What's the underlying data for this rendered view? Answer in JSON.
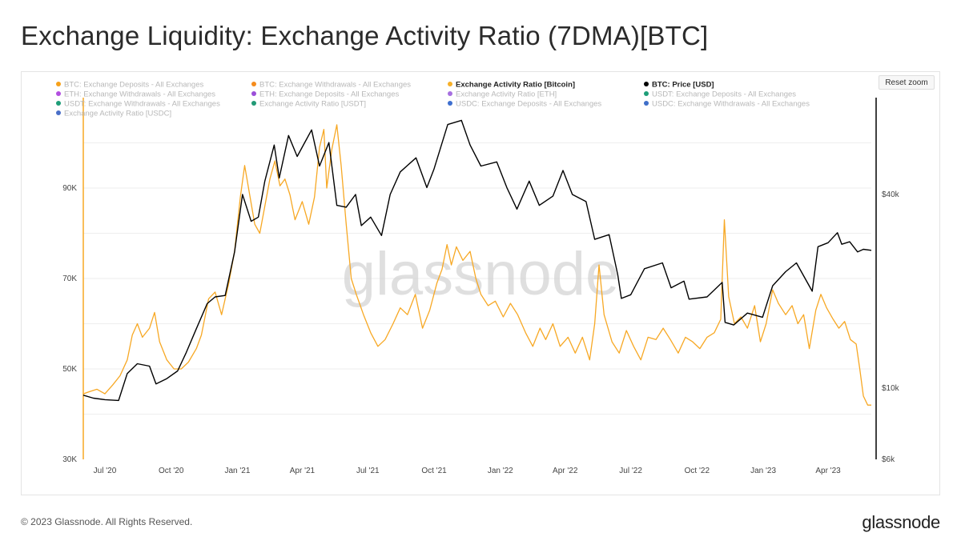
{
  "title": "Exchange Liquidity: Exchange Activity Ratio (7DMA)[BTC]",
  "reset_zoom_label": "Reset zoom",
  "watermark": "glassnode",
  "footer": {
    "copyright": "© 2023 Glassnode. All Rights Reserved.",
    "logo": "glassnode"
  },
  "colors": {
    "ratio_btc": "#F7A824",
    "price_btc": "#000000",
    "legend_inactive": "#b8b8b8",
    "grid": "#eeeeee"
  },
  "legend": [
    {
      "label": "BTC: Exchange Deposits - All Exchanges",
      "color": "#F7A11A",
      "active": false
    },
    {
      "label": "BTC: Exchange Withdrawals - All Exchanges",
      "color": "#F58C1C",
      "active": false
    },
    {
      "label": "Exchange Activity Ratio [Bitcoin]",
      "color": "#F7B028",
      "active": true
    },
    {
      "label": "BTC: Price [USD]",
      "color": "#000000",
      "active": true
    },
    {
      "label": "ETH: Exchange Withdrawals - All Exchanges",
      "color": "#B24FE0",
      "active": false
    },
    {
      "label": "ETH: Exchange Deposits - All Exchanges",
      "color": "#9B4FD9",
      "active": false
    },
    {
      "label": "Exchange Activity Ratio [ETH]",
      "color": "#A66FE0",
      "active": false
    },
    {
      "label": "USDT: Exchange Deposits - All Exchanges",
      "color": "#1E9E78",
      "active": false
    },
    {
      "label": "USDT: Exchange Withdrawals - All Exchanges",
      "color": "#1E9E78",
      "active": false
    },
    {
      "label": "Exchange Activity Ratio [USDT]",
      "color": "#229A76",
      "active": false
    },
    {
      "label": "USDC: Exchange Deposits - All Exchanges",
      "color": "#3E6FCF",
      "active": false
    },
    {
      "label": "USDC: Exchange Withdrawals - All Exchanges",
      "color": "#3F6FC9",
      "active": false
    },
    {
      "label": "Exchange Activity Ratio [USDC]",
      "color": "#4A6FC8",
      "active": false
    }
  ],
  "chart_data": {
    "type": "line",
    "title": "Exchange Liquidity: Exchange Activity Ratio (7DMA)[BTC]",
    "x_range": [
      "2020-06-01",
      "2023-05-31"
    ],
    "x_ticks": [
      {
        "label": "Jul '20",
        "date": "2020-07-01"
      },
      {
        "label": "Oct '20",
        "date": "2020-10-01"
      },
      {
        "label": "Jan '21",
        "date": "2021-01-01"
      },
      {
        "label": "Apr '21",
        "date": "2021-04-01"
      },
      {
        "label": "Jul '21",
        "date": "2021-07-01"
      },
      {
        "label": "Oct '21",
        "date": "2021-10-01"
      },
      {
        "label": "Jan '22",
        "date": "2022-01-01"
      },
      {
        "label": "Apr '22",
        "date": "2022-04-01"
      },
      {
        "label": "Jul '22",
        "date": "2022-07-01"
      },
      {
        "label": "Oct '22",
        "date": "2022-10-01"
      },
      {
        "label": "Jan '23",
        "date": "2023-01-01"
      },
      {
        "label": "Apr '23",
        "date": "2023-04-01"
      }
    ],
    "y_left": {
      "range": [
        30000,
        110000
      ],
      "ticks": [
        {
          "label": "30K",
          "value": 30000
        },
        {
          "label": "50K",
          "value": 50000
        },
        {
          "label": "70K",
          "value": 70000
        },
        {
          "label": "90K",
          "value": 90000
        }
      ]
    },
    "y_right": {
      "scale": "log",
      "range": [
        6000,
        80000
      ],
      "ticks": [
        {
          "label": "$6k",
          "value": 6000
        },
        {
          "label": "$10k",
          "value": 10000
        },
        {
          "label": "$40k",
          "value": 40000
        }
      ]
    },
    "series": [
      {
        "name": "Exchange Activity Ratio [Bitcoin]",
        "axis": "left",
        "color": "#F7A824",
        "points": [
          [
            "2020-06-01",
            44500
          ],
          [
            "2020-06-10",
            45000
          ],
          [
            "2020-06-20",
            45500
          ],
          [
            "2020-07-01",
            44500
          ],
          [
            "2020-07-12",
            46500
          ],
          [
            "2020-07-22",
            48500
          ],
          [
            "2020-08-01",
            52000
          ],
          [
            "2020-08-08",
            57500
          ],
          [
            "2020-08-15",
            60000
          ],
          [
            "2020-08-22",
            57000
          ],
          [
            "2020-09-01",
            59000
          ],
          [
            "2020-09-08",
            62500
          ],
          [
            "2020-09-15",
            56000
          ],
          [
            "2020-09-25",
            52000
          ],
          [
            "2020-10-05",
            50000
          ],
          [
            "2020-10-15",
            50000
          ],
          [
            "2020-10-25",
            51500
          ],
          [
            "2020-11-05",
            54500
          ],
          [
            "2020-11-12",
            57500
          ],
          [
            "2020-11-22",
            65500
          ],
          [
            "2020-12-01",
            67000
          ],
          [
            "2020-12-10",
            62000
          ],
          [
            "2020-12-20",
            69000
          ],
          [
            "2020-12-28",
            76000
          ],
          [
            "2021-01-05",
            88000
          ],
          [
            "2021-01-11",
            95000
          ],
          [
            "2021-01-18",
            88500
          ],
          [
            "2021-01-25",
            82000
          ],
          [
            "2021-02-01",
            80000
          ],
          [
            "2021-02-08",
            86000
          ],
          [
            "2021-02-15",
            92000
          ],
          [
            "2021-02-22",
            96000
          ],
          [
            "2021-03-01",
            90500
          ],
          [
            "2021-03-08",
            92000
          ],
          [
            "2021-03-15",
            88500
          ],
          [
            "2021-03-22",
            83000
          ],
          [
            "2021-04-01",
            87000
          ],
          [
            "2021-04-10",
            82000
          ],
          [
            "2021-04-18",
            88000
          ],
          [
            "2021-04-25",
            99000
          ],
          [
            "2021-05-01",
            103000
          ],
          [
            "2021-05-05",
            90000
          ],
          [
            "2021-05-12",
            98500
          ],
          [
            "2021-05-19",
            104000
          ],
          [
            "2021-05-25",
            95000
          ],
          [
            "2021-06-01",
            82000
          ],
          [
            "2021-06-08",
            70000
          ],
          [
            "2021-06-15",
            66500
          ],
          [
            "2021-06-25",
            62000
          ],
          [
            "2021-07-05",
            58000
          ],
          [
            "2021-07-15",
            55000
          ],
          [
            "2021-07-25",
            56500
          ],
          [
            "2021-08-05",
            60000
          ],
          [
            "2021-08-15",
            63500
          ],
          [
            "2021-08-25",
            62000
          ],
          [
            "2021-09-05",
            66500
          ],
          [
            "2021-09-15",
            59000
          ],
          [
            "2021-09-25",
            63000
          ],
          [
            "2021-10-05",
            69000
          ],
          [
            "2021-10-12",
            72000
          ],
          [
            "2021-10-19",
            77500
          ],
          [
            "2021-10-25",
            73000
          ],
          [
            "2021-11-01",
            77000
          ],
          [
            "2021-11-10",
            74000
          ],
          [
            "2021-11-20",
            76000
          ],
          [
            "2021-11-28",
            70000
          ],
          [
            "2021-12-05",
            66500
          ],
          [
            "2021-12-15",
            64000
          ],
          [
            "2021-12-25",
            65000
          ],
          [
            "2022-01-05",
            61500
          ],
          [
            "2022-01-15",
            64500
          ],
          [
            "2022-01-25",
            62000
          ],
          [
            "2022-02-05",
            58000
          ],
          [
            "2022-02-15",
            55000
          ],
          [
            "2022-02-25",
            59000
          ],
          [
            "2022-03-05",
            56500
          ],
          [
            "2022-03-15",
            60000
          ],
          [
            "2022-03-25",
            55000
          ],
          [
            "2022-04-05",
            57000
          ],
          [
            "2022-04-15",
            53500
          ],
          [
            "2022-04-25",
            57000
          ],
          [
            "2022-05-05",
            52000
          ],
          [
            "2022-05-12",
            60000
          ],
          [
            "2022-05-18",
            73000
          ],
          [
            "2022-05-25",
            62000
          ],
          [
            "2022-06-05",
            56000
          ],
          [
            "2022-06-15",
            53500
          ],
          [
            "2022-06-25",
            58500
          ],
          [
            "2022-07-05",
            55000
          ],
          [
            "2022-07-15",
            52000
          ],
          [
            "2022-07-25",
            57000
          ],
          [
            "2022-08-05",
            56500
          ],
          [
            "2022-08-15",
            59000
          ],
          [
            "2022-08-25",
            56500
          ],
          [
            "2022-09-05",
            53500
          ],
          [
            "2022-09-15",
            57000
          ],
          [
            "2022-09-25",
            56000
          ],
          [
            "2022-10-05",
            54500
          ],
          [
            "2022-10-15",
            57000
          ],
          [
            "2022-10-25",
            58000
          ],
          [
            "2022-11-03",
            61000
          ],
          [
            "2022-11-08",
            83000
          ],
          [
            "2022-11-14",
            66000
          ],
          [
            "2022-11-22",
            60000
          ],
          [
            "2022-12-01",
            61500
          ],
          [
            "2022-12-10",
            59000
          ],
          [
            "2022-12-20",
            64000
          ],
          [
            "2022-12-28",
            56000
          ],
          [
            "2023-01-05",
            60000
          ],
          [
            "2023-01-14",
            67500
          ],
          [
            "2023-01-22",
            64500
          ],
          [
            "2023-02-01",
            62000
          ],
          [
            "2023-02-10",
            64000
          ],
          [
            "2023-02-18",
            60000
          ],
          [
            "2023-02-26",
            62000
          ],
          [
            "2023-03-06",
            54500
          ],
          [
            "2023-03-15",
            63000
          ],
          [
            "2023-03-22",
            66500
          ],
          [
            "2023-03-30",
            63500
          ],
          [
            "2023-04-08",
            61000
          ],
          [
            "2023-04-16",
            59000
          ],
          [
            "2023-04-24",
            60500
          ],
          [
            "2023-05-02",
            56500
          ],
          [
            "2023-05-10",
            55500
          ],
          [
            "2023-05-15",
            50000
          ],
          [
            "2023-05-20",
            44000
          ],
          [
            "2023-05-26",
            42000
          ],
          [
            "2023-05-31",
            42000
          ]
        ]
      },
      {
        "name": "BTC: Price [USD]",
        "axis": "right",
        "color": "#000000",
        "points": [
          [
            "2020-06-01",
            9500
          ],
          [
            "2020-06-15",
            9300
          ],
          [
            "2020-07-01",
            9200
          ],
          [
            "2020-07-20",
            9150
          ],
          [
            "2020-08-01",
            11100
          ],
          [
            "2020-08-15",
            11900
          ],
          [
            "2020-09-01",
            11700
          ],
          [
            "2020-09-10",
            10300
          ],
          [
            "2020-09-25",
            10700
          ],
          [
            "2020-10-10",
            11300
          ],
          [
            "2020-10-22",
            12900
          ],
          [
            "2020-11-05",
            15300
          ],
          [
            "2020-11-20",
            18300
          ],
          [
            "2020-12-01",
            19200
          ],
          [
            "2020-12-15",
            19400
          ],
          [
            "2020-12-28",
            26500
          ],
          [
            "2021-01-08",
            40000
          ],
          [
            "2021-01-20",
            33000
          ],
          [
            "2021-01-30",
            34000
          ],
          [
            "2021-02-08",
            44000
          ],
          [
            "2021-02-21",
            57000
          ],
          [
            "2021-02-28",
            45000
          ],
          [
            "2021-03-13",
            61000
          ],
          [
            "2021-03-25",
            52500
          ],
          [
            "2021-04-14",
            63500
          ],
          [
            "2021-04-25",
            49000
          ],
          [
            "2021-05-08",
            58000
          ],
          [
            "2021-05-19",
            37000
          ],
          [
            "2021-06-01",
            36500
          ],
          [
            "2021-06-14",
            40000
          ],
          [
            "2021-06-22",
            32000
          ],
          [
            "2021-07-05",
            34000
          ],
          [
            "2021-07-20",
            29800
          ],
          [
            "2021-08-01",
            40000
          ],
          [
            "2021-08-15",
            47000
          ],
          [
            "2021-09-06",
            52000
          ],
          [
            "2021-09-21",
            42000
          ],
          [
            "2021-10-01",
            48000
          ],
          [
            "2021-10-20",
            66000
          ],
          [
            "2021-11-08",
            68000
          ],
          [
            "2021-11-20",
            57000
          ],
          [
            "2021-12-05",
            49000
          ],
          [
            "2021-12-27",
            50500
          ],
          [
            "2022-01-10",
            42000
          ],
          [
            "2022-01-24",
            36000
          ],
          [
            "2022-02-10",
            44000
          ],
          [
            "2022-02-24",
            37000
          ],
          [
            "2022-03-15",
            39500
          ],
          [
            "2022-03-29",
            47500
          ],
          [
            "2022-04-11",
            40000
          ],
          [
            "2022-04-30",
            38000
          ],
          [
            "2022-05-12",
            29000
          ],
          [
            "2022-06-01",
            30000
          ],
          [
            "2022-06-13",
            22500
          ],
          [
            "2022-06-18",
            19000
          ],
          [
            "2022-07-01",
            19500
          ],
          [
            "2022-07-20",
            23500
          ],
          [
            "2022-08-14",
            24500
          ],
          [
            "2022-08-26",
            20500
          ],
          [
            "2022-09-13",
            21500
          ],
          [
            "2022-09-20",
            18900
          ],
          [
            "2022-10-15",
            19200
          ],
          [
            "2022-11-05",
            21300
          ],
          [
            "2022-11-09",
            16000
          ],
          [
            "2022-11-21",
            15700
          ],
          [
            "2022-12-10",
            17100
          ],
          [
            "2022-12-31",
            16600
          ],
          [
            "2023-01-14",
            20800
          ],
          [
            "2023-02-01",
            23000
          ],
          [
            "2023-02-16",
            24500
          ],
          [
            "2023-03-10",
            20000
          ],
          [
            "2023-03-18",
            27500
          ],
          [
            "2023-04-01",
            28300
          ],
          [
            "2023-04-14",
            30400
          ],
          [
            "2023-04-20",
            28000
          ],
          [
            "2023-05-01",
            28500
          ],
          [
            "2023-05-12",
            26500
          ],
          [
            "2023-05-20",
            27000
          ],
          [
            "2023-05-31",
            26800
          ]
        ]
      }
    ]
  }
}
